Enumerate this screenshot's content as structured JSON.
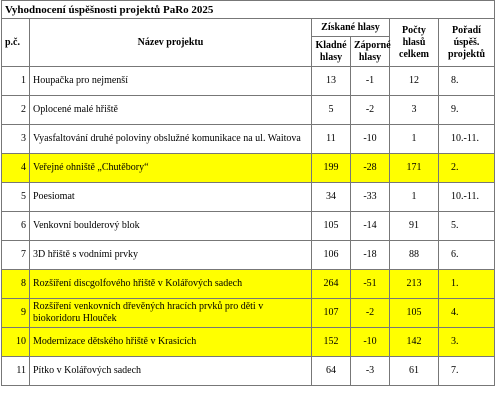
{
  "title": "Vyhodnocení úspěšnosti projektů PaRo 2025",
  "header": {
    "no": "p.č.",
    "name": "Název projektu",
    "votes": "Získané hlasy",
    "positive": "Kladné hlasy",
    "negative": "Záporné hlasy",
    "total": "Počty hlasů celkem",
    "rank": "Pořadí úspěš. projektů"
  },
  "highlight_color": "#ffff00",
  "rows": [
    {
      "no": 1,
      "name": "Houpačka pro nejmenší",
      "positive": 13,
      "negative": -1,
      "total": 12,
      "rank": "8.",
      "highlight": false
    },
    {
      "no": 2,
      "name": "Oplocené malé hřiště",
      "positive": 5,
      "negative": -2,
      "total": 3,
      "rank": "9.",
      "highlight": false
    },
    {
      "no": 3,
      "name": "Vyasfaltování druhé poloviny obslužné komunikace na ul. Waitova",
      "positive": 11,
      "negative": -10,
      "total": 1,
      "rank": "10.-11.",
      "highlight": false
    },
    {
      "no": 4,
      "name": "Veřejné ohniště „Chutěbory“",
      "positive": 199,
      "negative": -28,
      "total": 171,
      "rank": "2.",
      "highlight": true
    },
    {
      "no": 5,
      "name": "Poesiomat",
      "positive": 34,
      "negative": -33,
      "total": 1,
      "rank": "10.-11.",
      "highlight": false
    },
    {
      "no": 6,
      "name": "Venkovní boulderový blok",
      "positive": 105,
      "negative": -14,
      "total": 91,
      "rank": "5.",
      "highlight": false
    },
    {
      "no": 7,
      "name": "3D hřiště s vodními prvky",
      "positive": 106,
      "negative": -18,
      "total": 88,
      "rank": "6.",
      "highlight": false
    },
    {
      "no": 8,
      "name": "Rozšíření discgolfového hřiště v Kolářových sadech",
      "positive": 264,
      "negative": -51,
      "total": 213,
      "rank": "1.",
      "highlight": true
    },
    {
      "no": 9,
      "name": "Rozšíření venkovních dřevěných hracích prvků pro děti v biokoridoru Hlouček",
      "positive": 107,
      "negative": -2,
      "total": 105,
      "rank": "4.",
      "highlight": true
    },
    {
      "no": 10,
      "name": "Modernizace dětského hřiště v Krasicích",
      "positive": 152,
      "negative": -10,
      "total": 142,
      "rank": "3.",
      "highlight": true
    },
    {
      "no": 11,
      "name": "Pítko v Kolářových sadech",
      "positive": 64,
      "negative": -3,
      "total": 61,
      "rank": "7.",
      "highlight": false
    }
  ]
}
